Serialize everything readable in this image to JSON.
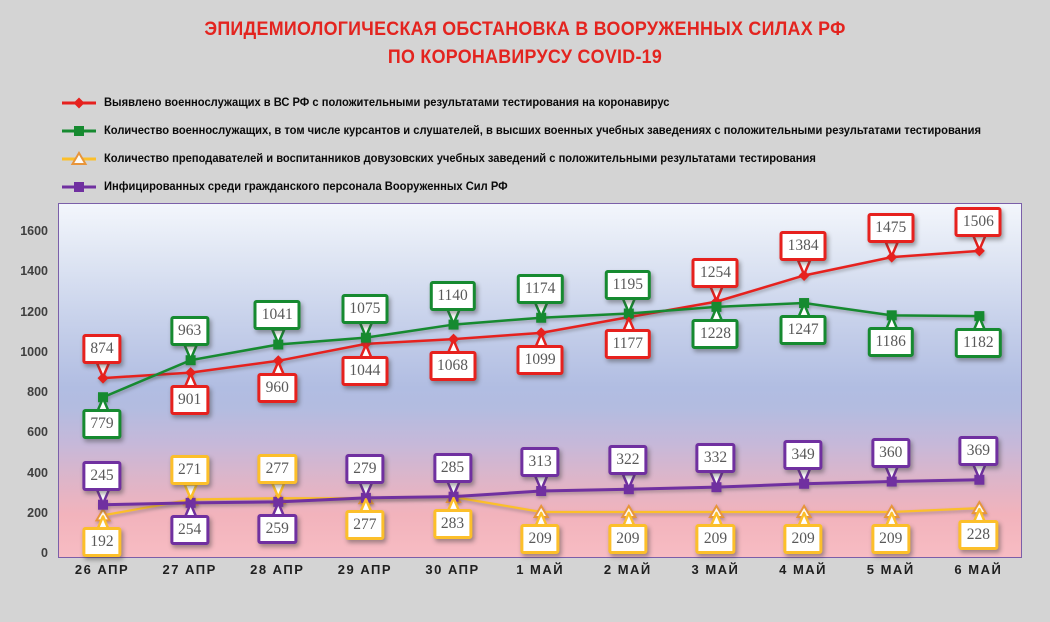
{
  "page": {
    "background": "#d4d4d4"
  },
  "title": {
    "line1": "ЭПИДЕМИОЛОГИЧЕСКАЯ ОБСТАНОВКА В ВООРУЖЕННЫХ СИЛАХ РФ",
    "line2": "ПО КОРОНАВИРУСУ COVID-19",
    "color": "#e3241f"
  },
  "legend": {
    "items": [
      {
        "id": "confirmed-servicemen",
        "label": "Выявлено военнослужащих в ВС РФ с положительными результатами тестирования на коронавирус",
        "color": "#e6211e",
        "marker": "diamond"
      },
      {
        "id": "military-schools",
        "label": "Количество военнослужащих, в том числе курсантов и слушателей, в высших военных учебных заведениях с положительными результатами тестирования",
        "color": "#168a30",
        "marker": "square"
      },
      {
        "id": "pre-university",
        "label": "Количество преподавателей и воспитанников довузовских учебных заведений с положительными результатами тестирования",
        "color": "#fcbf2a",
        "marker": "triangle-open"
      },
      {
        "id": "civilian-staff",
        "label": "Инфицированных среди гражданского персонала Вооруженных Сил РФ",
        "color": "#7030a0",
        "marker": "square"
      }
    ]
  },
  "chart_data": {
    "type": "line",
    "title": "ЭПИДЕМИОЛОГИЧЕСКАЯ ОБСТАНОВКА В ВООРУЖЕННЫХ СИЛАХ РФ ПО КОРОНАВИРУСУ COVID-19",
    "categories": [
      "26 АПР",
      "27 АПР",
      "28 АПР",
      "29 АПР",
      "30 АПР",
      "1 МАЙ",
      "2 МАЙ",
      "3 МАЙ",
      "4 МАЙ",
      "5 МАЙ",
      "6 МАЙ"
    ],
    "y_ticks": [
      0,
      200,
      400,
      600,
      800,
      1000,
      1200,
      1400,
      1600
    ],
    "ylim": [
      0,
      1740
    ],
    "grid": false,
    "legend_position": "top-left",
    "data_labels": "callout-boxes",
    "plot_background_gradient": [
      "#f3f6fc",
      "#b1bde2",
      "#c6b8d9",
      "#f7bcc3"
    ],
    "series": [
      {
        "id": "confirmed-servicemen",
        "name": "Выявлено военнослужащих в ВС РФ с положительными результатами тестирования на коронавирус",
        "color": "#e6211e",
        "marker": "diamond",
        "line_width": 2.5,
        "values": [
          874,
          901,
          960,
          1044,
          1068,
          1099,
          1177,
          1254,
          1384,
          1475,
          1506
        ],
        "label_side": [
          "above",
          "below",
          "below",
          "below",
          "below",
          "below",
          "below",
          "above",
          "above",
          "above",
          "above"
        ]
      },
      {
        "id": "military-schools",
        "name": "Количество военнослужащих, в том числе курсантов и слушателей, в высших военных учебных заведениях с положительными результатами тестирования",
        "color": "#168a30",
        "marker": "square",
        "line_width": 2.5,
        "values": [
          779,
          963,
          1041,
          1075,
          1140,
          1174,
          1195,
          1228,
          1247,
          1186,
          1182
        ],
        "label_side": [
          "below",
          "above",
          "above",
          "above",
          "above",
          "above",
          "above",
          "below",
          "below",
          "below",
          "below"
        ]
      },
      {
        "id": "pre-university",
        "name": "Количество преподавателей и воспитанников довузовских учебных заведений с положительными результатами тестирования",
        "color": "#fcbf2a",
        "marker": "triangle-open",
        "marker_stroke": "#e8953a",
        "line_width": 2.25,
        "values": [
          192,
          271,
          277,
          277,
          283,
          209,
          209,
          209,
          209,
          209,
          228
        ],
        "label_side": [
          "below",
          "above",
          "above",
          "below",
          "below",
          "below",
          "below",
          "below",
          "below",
          "below",
          "below"
        ]
      },
      {
        "id": "civilian-staff",
        "name": "Инфицированных среди гражданского персонала Вооруженных Сил РФ",
        "color": "#7030a0",
        "marker": "square",
        "line_width": 3,
        "values": [
          245,
          254,
          259,
          279,
          285,
          313,
          322,
          332,
          349,
          360,
          369
        ],
        "label_side": [
          "above",
          "below",
          "below",
          "above",
          "above",
          "above",
          "above",
          "above",
          "above",
          "above",
          "above"
        ]
      }
    ],
    "data_label_style": {
      "text_color": "#595959",
      "background": "#ffffff"
    }
  }
}
